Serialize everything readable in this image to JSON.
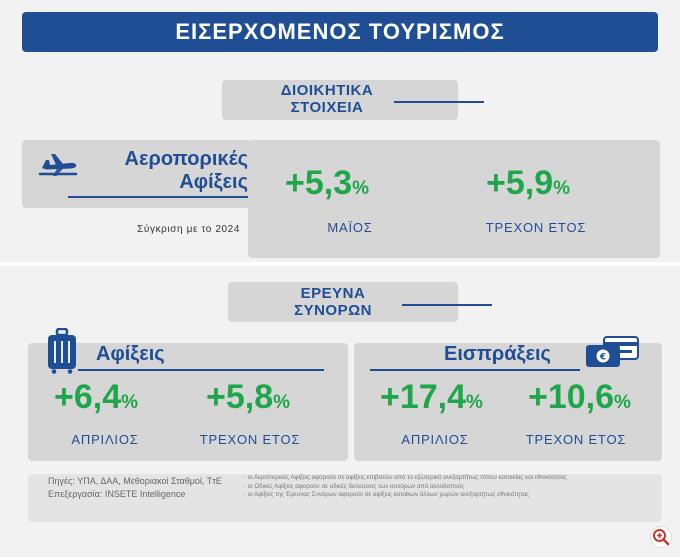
{
  "title": "ΕΙΣΕΡΧΟΜΕΝΟΣ ΤΟΥΡΙΣΜΟΣ",
  "admin_section": {
    "line1": "ΔΙΟΙΚΗΤΙΚΑ",
    "line2": "ΣΤΟΙΧΕΙΑ"
  },
  "air_arrivals": {
    "title_line1": "Αεροπορικές",
    "title_line2": "Αφίξεις",
    "comparison": "Σύγκριση με το 2024",
    "may": {
      "value": "+5,3",
      "unit": "%",
      "label": "ΜΑΪΟΣ"
    },
    "ytd": {
      "value": "+5,9",
      "unit": "%",
      "label": "ΤΡΕΧΟΝ ΕΤΟΣ"
    }
  },
  "border_survey": {
    "line1": "ΕΡΕΥΝΑ",
    "line2": "ΣΥΝΟΡΩΝ"
  },
  "arrivals": {
    "title": "Αφίξεις",
    "april": {
      "value": "+6,4",
      "unit": "%",
      "label": "ΑΠΡΙΛΙΟΣ"
    },
    "ytd": {
      "value": "+5,8",
      "unit": "%",
      "label": "ΤΡΕΧΟΝ ΕΤΟΣ"
    }
  },
  "receipts": {
    "title": "Εισπράξεις",
    "april": {
      "value": "+17,4",
      "unit": "%",
      "label": "ΑΠΡΙΛΙΟΣ"
    },
    "ytd": {
      "value": "+10,6",
      "unit": "%",
      "label": "ΤΡΕΧΟΝ ΕΤΟΣ"
    }
  },
  "footer": {
    "sources": "Πηγές: ΥΠΑ, ΔΑΑ, Μεθοριακοί Σταθμοί, ΤτΕ",
    "processing": "Επεξεργασία: INSETE Intelligence",
    "note1": "- οι Αεροπορικές Αφίξεις αφορούν σε αφίξεις επιβατών από το εξωτερικό ανεξαρτήτως τόπου κατοικίας και εθνικότητας",
    "note2": "- οι Οδικές Αφίξεις αφορούν σε οδικές διελεύσεις των συνόρων από αλλοδαπούς",
    "note3": "- οι Αφίξεις της Έρευνας Συνόρων αφορούν σε αφίξεις κατοίκων άλλων χωρών ανεξαρτήτως εθνικότητας"
  },
  "colors": {
    "navy": "#1f4e95",
    "green": "#1fa64a",
    "panel": "#f2f2f2",
    "box": "#d6d6d6",
    "zoom": "#c0392b"
  },
  "icons": [
    "airplane-icon",
    "suitcase-icon",
    "payment-card-icon",
    "zoom-in-icon"
  ]
}
